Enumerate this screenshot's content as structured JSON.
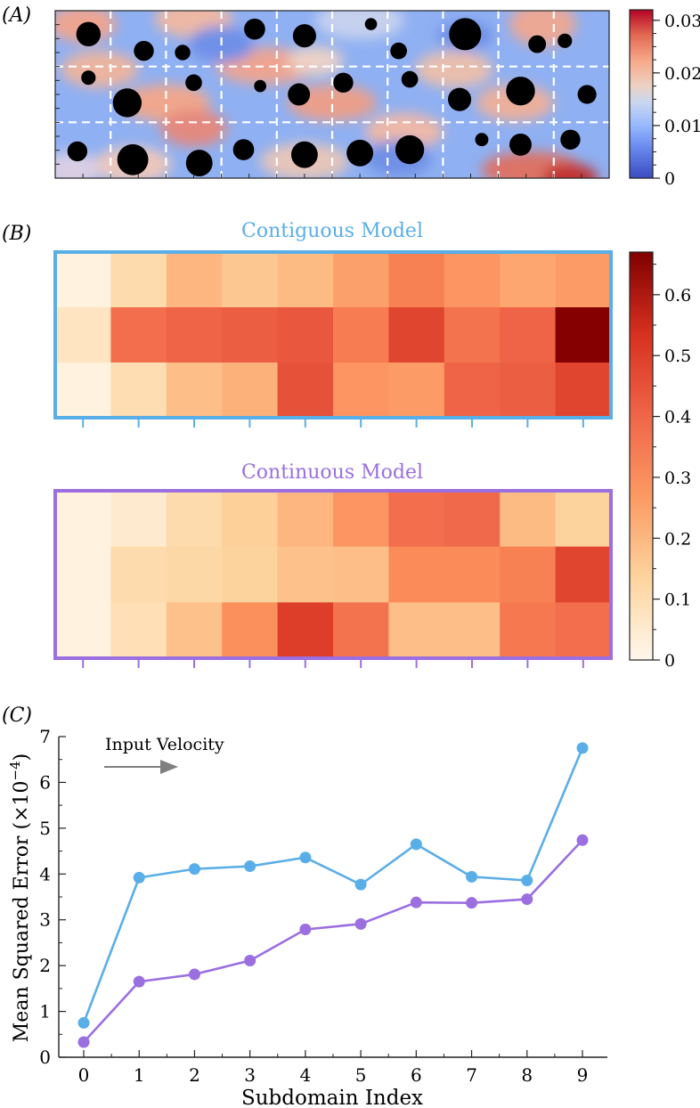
{
  "panels": {
    "a_label": "(A)",
    "b_label": "(B)",
    "c_label": "(C)"
  },
  "chart_data": [
    {
      "type": "heatmap",
      "panel": "A",
      "title": "",
      "description_kind": "flow field with cylindrical obstacles, dashed subdomain grid 10 x 3",
      "grid_columns": 10,
      "grid_rows": 3,
      "colorbar": {
        "ticks": [
          "0",
          "0.01",
          "0.02",
          "0.03"
        ],
        "tick_values": [
          0,
          0.01,
          0.02,
          0.03
        ],
        "range": [
          0,
          0.032
        ],
        "colormap": "coolwarm"
      }
    },
    {
      "type": "heatmap",
      "panel": "B-top",
      "title": "Contiguous Model",
      "title_color": "#5aaee8",
      "border_color": "#5aaee8",
      "rows": 3,
      "cols": 10,
      "values": [
        [
          0.03,
          0.14,
          0.26,
          0.21,
          0.25,
          0.3,
          0.36,
          0.32,
          0.29,
          0.31
        ],
        [
          0.1,
          0.4,
          0.42,
          0.43,
          0.44,
          0.37,
          0.47,
          0.39,
          0.42,
          0.66
        ],
        [
          0.03,
          0.13,
          0.24,
          0.27,
          0.45,
          0.32,
          0.31,
          0.42,
          0.43,
          0.47
        ]
      ]
    },
    {
      "type": "heatmap",
      "panel": "B-bottom",
      "title": "Continuous Model",
      "title_color": "#9b6fe0",
      "border_color": "#9b6fe0",
      "rows": 3,
      "cols": 10,
      "values": [
        [
          0.03,
          0.07,
          0.14,
          0.18,
          0.26,
          0.32,
          0.4,
          0.41,
          0.25,
          0.17
        ],
        [
          0.03,
          0.14,
          0.15,
          0.17,
          0.23,
          0.24,
          0.34,
          0.34,
          0.36,
          0.47
        ],
        [
          0.03,
          0.12,
          0.23,
          0.33,
          0.48,
          0.39,
          0.24,
          0.24,
          0.38,
          0.4
        ]
      ],
      "colorbar": {
        "ticks": [
          "0",
          "0.1",
          "0.2",
          "0.3",
          "0.4",
          "0.5",
          "0.6"
        ],
        "tick_values": [
          0,
          0.1,
          0.2,
          0.3,
          0.4,
          0.5,
          0.6
        ],
        "range": [
          0,
          0.67
        ],
        "colormap": "OrRd"
      }
    },
    {
      "type": "line",
      "panel": "C",
      "title": "",
      "xlabel": "Subdomain Index",
      "ylabel": "Mean Squared Error (×10",
      "ylabel_exponent": "−4",
      "ylabel_close": ")",
      "x": [
        0,
        1,
        2,
        3,
        4,
        5,
        6,
        7,
        8,
        9
      ],
      "xticks": [
        "0",
        "1",
        "2",
        "3",
        "4",
        "5",
        "6",
        "7",
        "8",
        "9"
      ],
      "yticks": [
        "0",
        "1",
        "2",
        "3",
        "4",
        "5",
        "6",
        "7"
      ],
      "xlim": [
        -0.45,
        9.45
      ],
      "ylim": [
        0,
        7
      ],
      "annotation": "Input Velocity",
      "series": [
        {
          "name": "Contiguous Model",
          "color": "#5aaee8",
          "values": [
            0.75,
            3.92,
            4.11,
            4.17,
            4.36,
            3.77,
            4.65,
            3.94,
            3.86,
            6.75
          ]
        },
        {
          "name": "Continuous Model",
          "color": "#9b6fe0",
          "values": [
            0.33,
            1.65,
            1.81,
            2.11,
            2.79,
            2.91,
            3.38,
            3.37,
            3.45,
            4.74
          ]
        }
      ]
    }
  ]
}
